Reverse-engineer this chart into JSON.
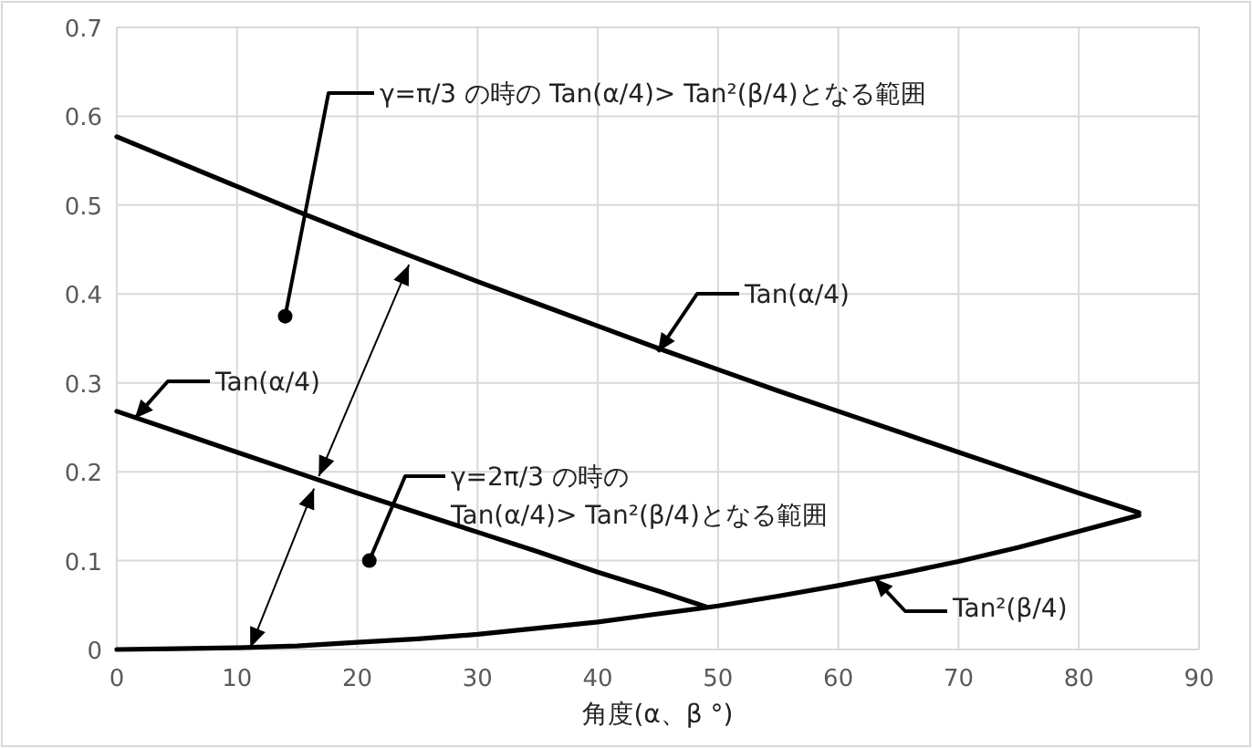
{
  "chart_data": {
    "type": "line",
    "xlabel": "角度(α、β °)",
    "xlim": [
      0,
      90
    ],
    "xticks": [
      0,
      10,
      20,
      30,
      40,
      50,
      60,
      70,
      80,
      90
    ],
    "ylim": [
      0,
      0.7
    ],
    "yticks": [
      0,
      0.1,
      0.2,
      0.3,
      0.4,
      0.5,
      0.6,
      0.7
    ],
    "grid": true,
    "series": [
      {
        "color": "#000000",
        "x": [
          0,
          5,
          10,
          15,
          20,
          25,
          30,
          35,
          40,
          45,
          50,
          55,
          60,
          65,
          70,
          75,
          80,
          85
        ],
        "values": [
          0.577,
          0.549,
          0.521,
          0.493,
          0.466,
          0.44,
          0.414,
          0.389,
          0.364,
          0.339,
          0.315,
          0.291,
          0.268,
          0.245,
          0.222,
          0.199,
          0.176,
          0.154
        ]
      },
      {
        "color": "#000000",
        "x": [
          0,
          5,
          10,
          15,
          20,
          25,
          30,
          35,
          40,
          45,
          49
        ],
        "values": [
          0.268,
          0.245,
          0.222,
          0.199,
          0.176,
          0.154,
          0.132,
          0.11,
          0.087,
          0.066,
          0.048
        ]
      },
      {
        "color": "#000000",
        "x": [
          0,
          5,
          10,
          15,
          20,
          25,
          30,
          35,
          40,
          45,
          50,
          55,
          60,
          65,
          70,
          75,
          80,
          85
        ],
        "values": [
          0,
          0.001,
          0.002,
          0.004,
          0.008,
          0.012,
          0.017,
          0.024,
          0.031,
          0.04,
          0.049,
          0.06,
          0.072,
          0.085,
          0.099,
          0.115,
          0.133,
          0.151
        ]
      }
    ],
    "annotations": [
      {
        "text": "γ=π/3 の時の Tan(α/4)> Tan²(β/4)となる範囲",
        "x": 14,
        "y": 0.375
      },
      {
        "text": "Tan(α/4)",
        "x": 45,
        "y": 0.335
      },
      {
        "text": "Tan(α/4)",
        "x": 1.5,
        "y": 0.26
      },
      {
        "text": "γ=2π/3 の時の\nTan(α/4)> Tan²(β/4)となる範囲",
        "x": 21,
        "y": 0.1
      },
      {
        "text": "Tan²(β/4)",
        "x": 63,
        "y": 0.08
      }
    ]
  }
}
